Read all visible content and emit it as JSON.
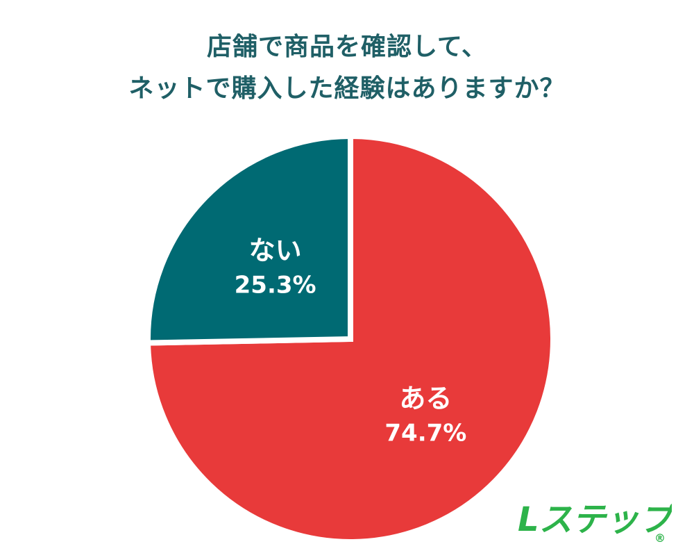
{
  "chart_data": {
    "type": "pie",
    "title_lines": [
      "店舗で商品を確認して、",
      "ネットで購入した経験はありますか？"
    ],
    "slices": [
      {
        "label": "ある",
        "value": 74.7,
        "value_label": "74.7%",
        "color": "#e83a3a"
      },
      {
        "label": "ない",
        "value": 25.3,
        "value_label": "25.3%",
        "color": "#006a73"
      }
    ],
    "start": "12 o'clock",
    "direction": "clockwise",
    "legend": "none"
  },
  "logo": {
    "text": "Lステップ",
    "registered": "®",
    "color": "#2db34a"
  },
  "colors": {
    "title": "#1f5f66",
    "separator": "#ffffff"
  }
}
